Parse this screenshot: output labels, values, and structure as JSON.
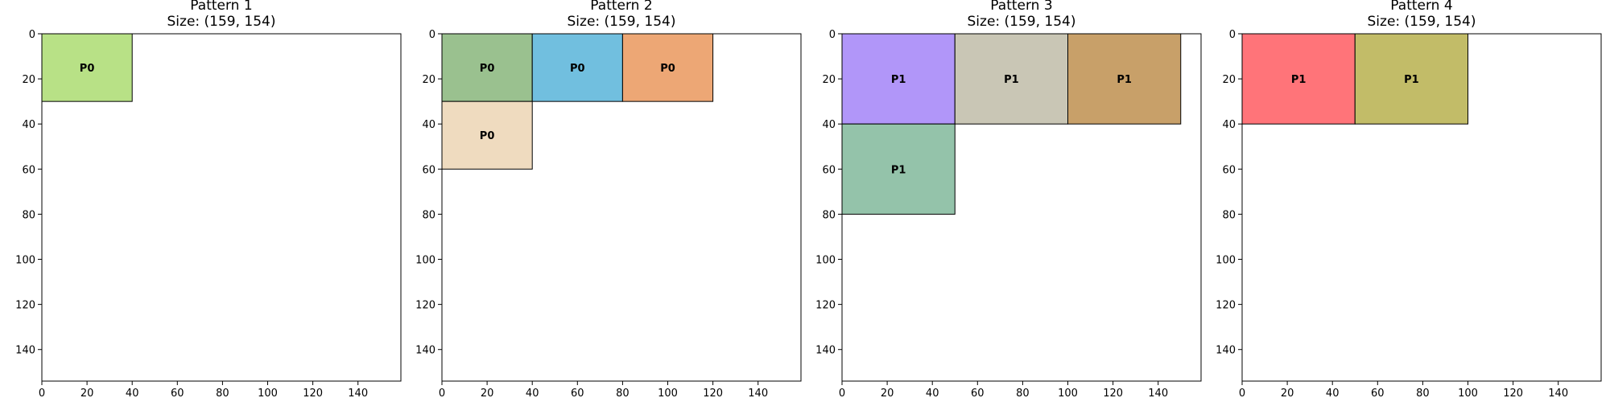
{
  "chart_data": [
    {
      "type": "rectangles",
      "title": "Pattern 1",
      "subtitle": "Size: (159, 154)",
      "xlim": [
        0,
        159
      ],
      "ylim": [
        154,
        0
      ],
      "xticks": [
        0,
        20,
        40,
        60,
        80,
        100,
        120,
        140
      ],
      "yticks": [
        0,
        20,
        40,
        60,
        80,
        100,
        120,
        140
      ],
      "grid": false,
      "pieces": [
        {
          "label": "P0",
          "x": 0,
          "y": 0,
          "w": 40,
          "h": 30,
          "color": "#b8e186"
        }
      ]
    },
    {
      "type": "rectangles",
      "title": "Pattern 2",
      "subtitle": "Size: (159, 154)",
      "xlim": [
        0,
        159
      ],
      "ylim": [
        154,
        0
      ],
      "xticks": [
        0,
        20,
        40,
        60,
        80,
        100,
        120,
        140
      ],
      "yticks": [
        0,
        20,
        40,
        60,
        80,
        100,
        120,
        140
      ],
      "grid": false,
      "pieces": [
        {
          "label": "P0",
          "x": 0,
          "y": 0,
          "w": 40,
          "h": 30,
          "color": "#9ac18f"
        },
        {
          "label": "P0",
          "x": 40,
          "y": 0,
          "w": 40,
          "h": 30,
          "color": "#71bfdf"
        },
        {
          "label": "P0",
          "x": 80,
          "y": 0,
          "w": 40,
          "h": 30,
          "color": "#eda775"
        },
        {
          "label": "P0",
          "x": 0,
          "y": 30,
          "w": 40,
          "h": 30,
          "color": "#efdbbf"
        }
      ]
    },
    {
      "type": "rectangles",
      "title": "Pattern 3",
      "subtitle": "Size: (159, 154)",
      "xlim": [
        0,
        159
      ],
      "ylim": [
        154,
        0
      ],
      "xticks": [
        0,
        20,
        40,
        60,
        80,
        100,
        120,
        140
      ],
      "yticks": [
        0,
        20,
        40,
        60,
        80,
        100,
        120,
        140
      ],
      "grid": false,
      "pieces": [
        {
          "label": "P1",
          "x": 0,
          "y": 0,
          "w": 50,
          "h": 40,
          "color": "#b196f9"
        },
        {
          "label": "P1",
          "x": 50,
          "y": 0,
          "w": 50,
          "h": 40,
          "color": "#c9c6b5"
        },
        {
          "label": "P1",
          "x": 100,
          "y": 0,
          "w": 50,
          "h": 40,
          "color": "#c8a069"
        },
        {
          "label": "P1",
          "x": 0,
          "y": 40,
          "w": 50,
          "h": 40,
          "color": "#94c3aa"
        }
      ]
    },
    {
      "type": "rectangles",
      "title": "Pattern 4",
      "subtitle": "Size: (159, 154)",
      "xlim": [
        0,
        159
      ],
      "ylim": [
        154,
        0
      ],
      "xticks": [
        0,
        20,
        40,
        60,
        80,
        100,
        120,
        140
      ],
      "yticks": [
        0,
        20,
        40,
        60,
        80,
        100,
        120,
        140
      ],
      "grid": false,
      "pieces": [
        {
          "label": "P1",
          "x": 0,
          "y": 0,
          "w": 50,
          "h": 40,
          "color": "#ff7479"
        },
        {
          "label": "P1",
          "x": 50,
          "y": 0,
          "w": 50,
          "h": 40,
          "color": "#c2bc68"
        }
      ]
    }
  ]
}
